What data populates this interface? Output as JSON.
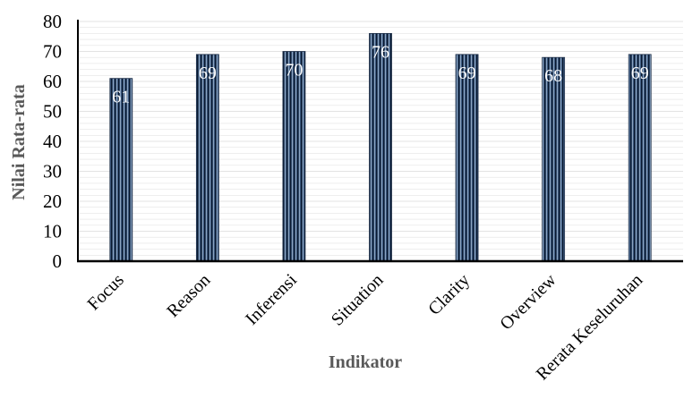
{
  "chart_data": {
    "type": "bar",
    "title": "",
    "xlabel": "Indikator",
    "ylabel": "Nilai Rata-rata",
    "categories": [
      "Focus",
      "Reason",
      "Inferensi",
      "Situation",
      "Clarity",
      "Overview",
      "Rerata Keseluruhan"
    ],
    "values": [
      61,
      69,
      70,
      76,
      69,
      68,
      69
    ],
    "data_labels": [
      "61",
      "69",
      "70",
      "76",
      "69",
      "68",
      "69"
    ],
    "ylim": [
      0,
      80
    ],
    "yticks": [
      0,
      10,
      20,
      30,
      40,
      50,
      60,
      70,
      80
    ],
    "ytick_labels": [
      "0",
      "10",
      "20",
      "30",
      "40",
      "50",
      "60",
      "70",
      "80"
    ],
    "grid": true,
    "legend": "none",
    "colors": {
      "bar_fill": "#3d5a80",
      "bar_stripe": "#0b1a30",
      "bar_highlight": "#9fb6cf",
      "gridline": "#e3e3e3",
      "axis": "#000000"
    }
  }
}
